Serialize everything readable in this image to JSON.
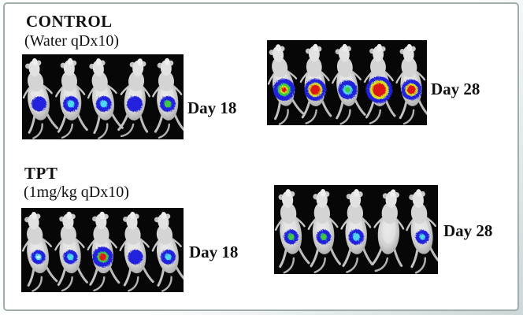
{
  "palette": {
    "blue": "#2323dc",
    "cyan": "#4fd8ec",
    "green": "#3ecb3a",
    "yellow": "#d8e01e",
    "red": "#dd1414",
    "white": "#ddfbfb",
    "panel_bg": "#070707",
    "frame_border": "#9fadad",
    "text": "#101010"
  },
  "figure": {
    "description": "Bioluminescence imaging of five mice per panel; signal spots rendered as concentric intensity layers (outer-to-inner color, radius px)",
    "groups": [
      {
        "title": "CONTROL",
        "dose": "(Water qDx10)",
        "panels": [
          {
            "day": "Day 18",
            "mice": [
              {
                "tilt": -9,
                "spot": [
                  [
                    "blue",
                    9.5
                  ]
                ]
              },
              {
                "tilt": -4,
                "spot": [
                  [
                    "blue",
                    10
                  ],
                  [
                    "cyan",
                    4.5
                  ]
                ]
              },
              {
                "tilt": -10,
                "spot": [
                  [
                    "blue",
                    10
                  ],
                  [
                    "cyan",
                    4.5
                  ]
                ]
              },
              {
                "tilt": 4,
                "spot": [
                  [
                    "blue",
                    10
                  ]
                ]
              },
              {
                "tilt": -4,
                "spot": [
                  [
                    "blue",
                    10
                  ],
                  [
                    "green",
                    4.5
                  ]
                ]
              }
            ]
          },
          {
            "day": "Day 28",
            "mice": [
              {
                "tilt": -11,
                "spot": [
                  [
                    "blue",
                    14
                  ],
                  [
                    "green",
                    8
                  ],
                  [
                    "yellow",
                    5
                  ],
                  [
                    "red",
                    3.2
                  ]
                ]
              },
              {
                "tilt": -3,
                "spot": [
                  [
                    "blue",
                    14
                  ],
                  [
                    "yellow",
                    9
                  ],
                  [
                    "red",
                    6.5
                  ]
                ]
              },
              {
                "tilt": -7,
                "spot": [
                  [
                    "blue",
                    12
                  ],
                  [
                    "cyan",
                    6
                  ],
                  [
                    "green",
                    3.5
                  ]
                ]
              },
              {
                "tilt": -3,
                "spot": [
                  [
                    "blue",
                    17
                  ],
                  [
                    "yellow",
                    12
                  ],
                  [
                    "red",
                    8.5
                  ]
                ]
              },
              {
                "tilt": -6,
                "spot": [
                  [
                    "blue",
                    13
                  ],
                  [
                    "yellow",
                    8
                  ],
                  [
                    "red",
                    5.5
                  ]
                ]
              }
            ]
          }
        ]
      },
      {
        "title": "TPT",
        "dose": "(1mg/kg qDx10)",
        "panels": [
          {
            "day": "Day 18",
            "mice": [
              {
                "tilt": -9,
                "spot": [
                  [
                    "blue",
                    9
                  ],
                  [
                    "cyan",
                    4
                  ],
                  [
                    "white",
                    2
                  ]
                ]
              },
              {
                "tilt": -5,
                "spot": [
                  [
                    "blue",
                    9
                  ],
                  [
                    "cyan",
                    4
                  ]
                ]
              },
              {
                "tilt": -4,
                "spot": [
                  [
                    "blue",
                    13
                  ],
                  [
                    "green",
                    7
                  ],
                  [
                    "red",
                    4.5
                  ]
                ]
              },
              {
                "tilt": -7,
                "spot": [
                  [
                    "blue",
                    9.5
                  ]
                ]
              },
              {
                "tilt": -9,
                "spot": [
                  [
                    "blue",
                    9.5
                  ],
                  [
                    "cyan",
                    4
                  ]
                ]
              }
            ]
          },
          {
            "day": "Day 28",
            "mice": [
              {
                "tilt": -7,
                "spot": [
                  [
                    "blue",
                    9
                  ],
                  [
                    "green",
                    4
                  ]
                ]
              },
              {
                "tilt": -4,
                "spot": [
                  [
                    "blue",
                    9
                  ],
                  [
                    "green",
                    4
                  ]
                ]
              },
              {
                "tilt": -3,
                "spot": [
                  [
                    "blue",
                    9.5
                  ],
                  [
                    "cyan",
                    4.5
                  ]
                ]
              },
              {
                "tilt": 3,
                "spot": []
              },
              {
                "tilt": -8,
                "spot": [
                  [
                    "blue",
                    8.5
                  ],
                  [
                    "cyan",
                    3.5
                  ]
                ]
              }
            ]
          }
        ]
      }
    ]
  }
}
